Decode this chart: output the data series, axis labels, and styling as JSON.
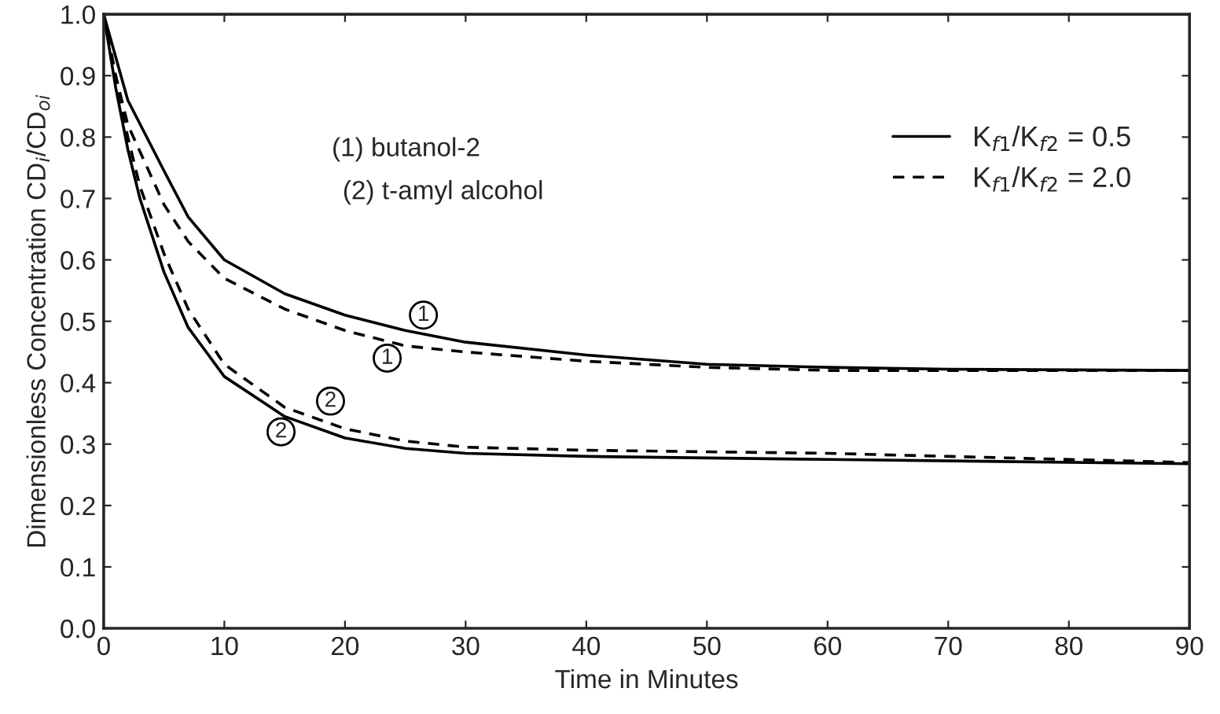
{
  "chart_data": {
    "type": "line",
    "xlabel": "Time in Minutes",
    "ylabel": "Dimensionless Concentration CD$_{i}$/CD$_{oi}$",
    "xlim": [
      0,
      90
    ],
    "xticks": [
      0,
      10,
      20,
      30,
      40,
      50,
      60,
      70,
      80,
      90
    ],
    "ylim": [
      0,
      1
    ],
    "yticks": [
      {
        "value": 0,
        "label": "0.0"
      },
      {
        "value": 0.1,
        "label": "0.1"
      },
      {
        "value": 0.2,
        "label": "0.2"
      },
      {
        "value": 0.3,
        "label": "0.3"
      },
      {
        "value": 0.4,
        "label": "0.4"
      },
      {
        "value": 0.5,
        "label": "0.5"
      },
      {
        "value": 0.6,
        "label": "0.6"
      },
      {
        "value": 0.7,
        "label": "0.7"
      },
      {
        "value": 0.8,
        "label": "0.8"
      },
      {
        "value": 0.9,
        "label": "0.9"
      },
      {
        "value": 1,
        "label": "1.0"
      }
    ],
    "grid": false,
    "legend": "top right",
    "marker": "none",
    "series": [
      {
        "name": "K$_{f1}$/K$_{f2}$ = 0.5",
        "color": "#000000",
        "line_style": "solid",
        "x": [
          0,
          1,
          2,
          5,
          7,
          10,
          15,
          20,
          25,
          30,
          40,
          50,
          60,
          70,
          90
        ],
        "values": [
          1.0,
          0.93,
          0.86,
          0.745,
          0.67,
          0.6,
          0.545,
          0.51,
          0.485,
          0.466,
          0.445,
          0.43,
          0.425,
          0.422,
          0.42
        ]
      },
      {
        "name": "K$_{f1}$/K$_{f2}$ = 2.0",
        "color": "#000000",
        "line_style": "dashed",
        "x": [
          0,
          1,
          2,
          5,
          7,
          10,
          15,
          20,
          25,
          30,
          40,
          50,
          60,
          70,
          90
        ],
        "values": [
          1.0,
          0.9,
          0.82,
          0.69,
          0.63,
          0.57,
          0.52,
          0.485,
          0.46,
          0.45,
          0.435,
          0.425,
          0.42,
          0.42,
          0.42
        ]
      },
      {
        "color": "#000000",
        "line_style": "solid",
        "x": [
          0,
          1,
          2,
          3,
          5,
          7,
          10,
          15,
          20,
          25,
          30,
          40,
          60,
          90
        ],
        "values": [
          1.0,
          0.88,
          0.78,
          0.7,
          0.58,
          0.49,
          0.41,
          0.345,
          0.31,
          0.293,
          0.285,
          0.28,
          0.275,
          0.268
        ]
      },
      {
        "color": "#000000",
        "line_style": "dashed",
        "x": [
          0,
          1,
          2,
          3,
          5,
          7,
          10,
          15,
          20,
          25,
          30,
          40,
          60,
          70,
          90
        ],
        "values": [
          1.0,
          0.89,
          0.8,
          0.72,
          0.61,
          0.52,
          0.43,
          0.36,
          0.325,
          0.305,
          0.295,
          0.29,
          0.285,
          0.28,
          0.27
        ]
      }
    ],
    "annotations": [
      "(1) butanol-2",
      "(2) t-amyl alcohol",
      {
        "text": "1",
        "x": 26.5,
        "y": 0.51
      },
      {
        "text": "1",
        "x": 23.5,
        "y": 0.44
      },
      {
        "text": "2",
        "x": 18.8,
        "y": 0.37
      },
      {
        "text": "2",
        "x": 14.7,
        "y": 0.32
      }
    ]
  }
}
